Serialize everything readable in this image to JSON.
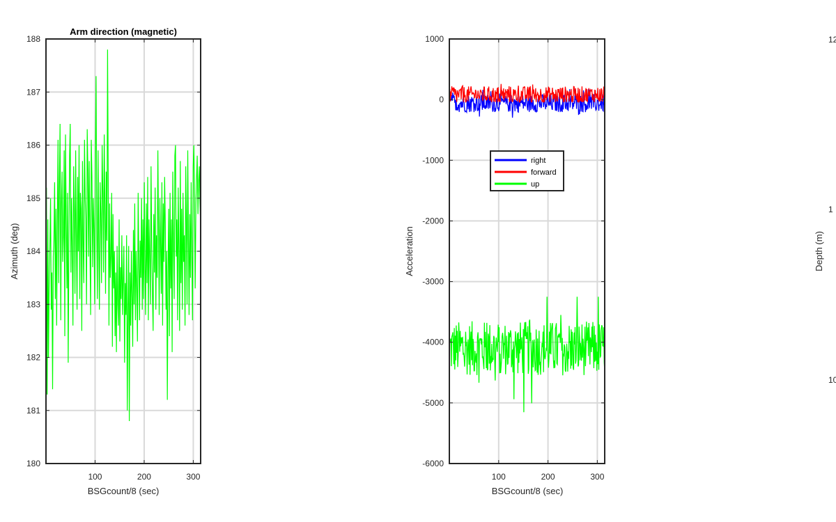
{
  "chart_data": [
    {
      "type": "line",
      "title": "Arm direction (magnetic)",
      "xlabel": "BSGcount/8 (sec)",
      "ylabel": "Azimuth (deg)",
      "xlim": [
        0,
        315
      ],
      "ylim": [
        180,
        188
      ],
      "xticks": [
        100,
        200,
        300
      ],
      "yticks": [
        180,
        181,
        182,
        183,
        184,
        185,
        186,
        187,
        188
      ],
      "grid": true,
      "series": [
        {
          "color": "#00ff00",
          "x_start": 1,
          "x_step": 1,
          "values": [
            185.2,
            181.3,
            184.6,
            182.0,
            183.4,
            184.1,
            185.0,
            182.9,
            183.6,
            181.4,
            183.9,
            184.2,
            185.3,
            183.1,
            184.8,
            182.6,
            184.5,
            186.1,
            183.4,
            185.2,
            186.4,
            182.7,
            184.9,
            185.5,
            183.8,
            184.3,
            185.9,
            182.4,
            186.2,
            184.6,
            183.3,
            185.1,
            181.9,
            184.2,
            185.8,
            186.4,
            183.6,
            185.0,
            184.1,
            182.6,
            185.6,
            184.7,
            183.2,
            185.9,
            184.3,
            182.9,
            185.4,
            184.0,
            186.0,
            183.1,
            185.1,
            184.8,
            182.5,
            185.7,
            184.2,
            183.4,
            186.1,
            185.0,
            184.6,
            183.0,
            186.3,
            185.5,
            183.9,
            185.7,
            184.1,
            182.8,
            186.1,
            185.4,
            183.7,
            185.0,
            184.4,
            183.0,
            185.8,
            187.3,
            184.5,
            183.1,
            185.9,
            184.0,
            182.9,
            185.3,
            184.7,
            183.4,
            186.0,
            185.1,
            183.6,
            186.2,
            184.9,
            183.2,
            185.5,
            184.2,
            187.8,
            185.3,
            182.6,
            184.9,
            183.5,
            183.9,
            185.1,
            182.2,
            184.7,
            183.3,
            184.0,
            182.4,
            183.6,
            182.1,
            184.1,
            183.0,
            182.6,
            184.6,
            182.3,
            183.7,
            183.1,
            184.3,
            182.8,
            183.5,
            184.1,
            181.9,
            183.4,
            182.8,
            184.3,
            181.0,
            182.9,
            184.1,
            180.8,
            183.6,
            182.6,
            184.0,
            183.2,
            182.2,
            184.4,
            183.0,
            184.9,
            182.7,
            184.0,
            183.3,
            182.3,
            185.1,
            183.8,
            182.7,
            184.2,
            183.5,
            185.0,
            182.9,
            184.6,
            183.1,
            185.3,
            183.7,
            182.8,
            184.9,
            183.4,
            185.4,
            182.7,
            184.6,
            183.9,
            183.0,
            185.6,
            184.1,
            183.2,
            182.5,
            184.7,
            183.6,
            185.2,
            182.9,
            184.3,
            183.5,
            185.9,
            184.4,
            182.8,
            185.0,
            184.1,
            183.2,
            185.3,
            182.6,
            184.9,
            183.8,
            185.4,
            184.5,
            182.9,
            184.0,
            181.2,
            183.6,
            184.8,
            182.4,
            185.1,
            183.3,
            184.6,
            182.1,
            185.5,
            184.2,
            183.1,
            185.8,
            186.0,
            183.9,
            184.6,
            182.7,
            185.2,
            184.0,
            182.5,
            185.7,
            183.4,
            184.8,
            182.9,
            185.1,
            183.8,
            184.3,
            182.6,
            185.6,
            184.6,
            183.0,
            185.9,
            184.2,
            182.8,
            184.7,
            183.5,
            185.3,
            184.0,
            182.7,
            185.6,
            186.0,
            185.0,
            183.3,
            184.9,
            185.4,
            185.8,
            184.7,
            185.3,
            185.6,
            184.9,
            184.5
          ],
          "note_x_max": 315
        }
      ]
    },
    {
      "type": "line",
      "title": "",
      "xlabel": "BSGcount/8 (sec)",
      "ylabel": "Acceleration",
      "xlim": [
        0,
        315
      ],
      "ylim": [
        -6000,
        1000
      ],
      "xticks": [
        100,
        200,
        300
      ],
      "yticks": [
        -6000,
        -5000,
        -4000,
        -3000,
        -2000,
        -1000,
        0,
        1000
      ],
      "grid": true,
      "legend": {
        "placement": "upper-middle",
        "entries": [
          "right",
          "forward",
          "up"
        ]
      },
      "series": [
        {
          "name": "right",
          "color": "#0000ff",
          "mean": -60,
          "amplitude": 150,
          "min": -320,
          "max": 170
        },
        {
          "name": "forward",
          "color": "#ff0000",
          "mean": 80,
          "amplitude": 140,
          "min": -40,
          "max": 320
        },
        {
          "name": "up",
          "color": "#00ff00",
          "mean": -4100,
          "amplitude": 450,
          "min": -5400,
          "max": -3250
        }
      ]
    },
    {
      "type": "line",
      "title": "",
      "xlabel": "",
      "ylabel": "Depth (m)",
      "visible_ytick_fragments": [
        "12",
        "1",
        "10"
      ],
      "series": []
    }
  ]
}
